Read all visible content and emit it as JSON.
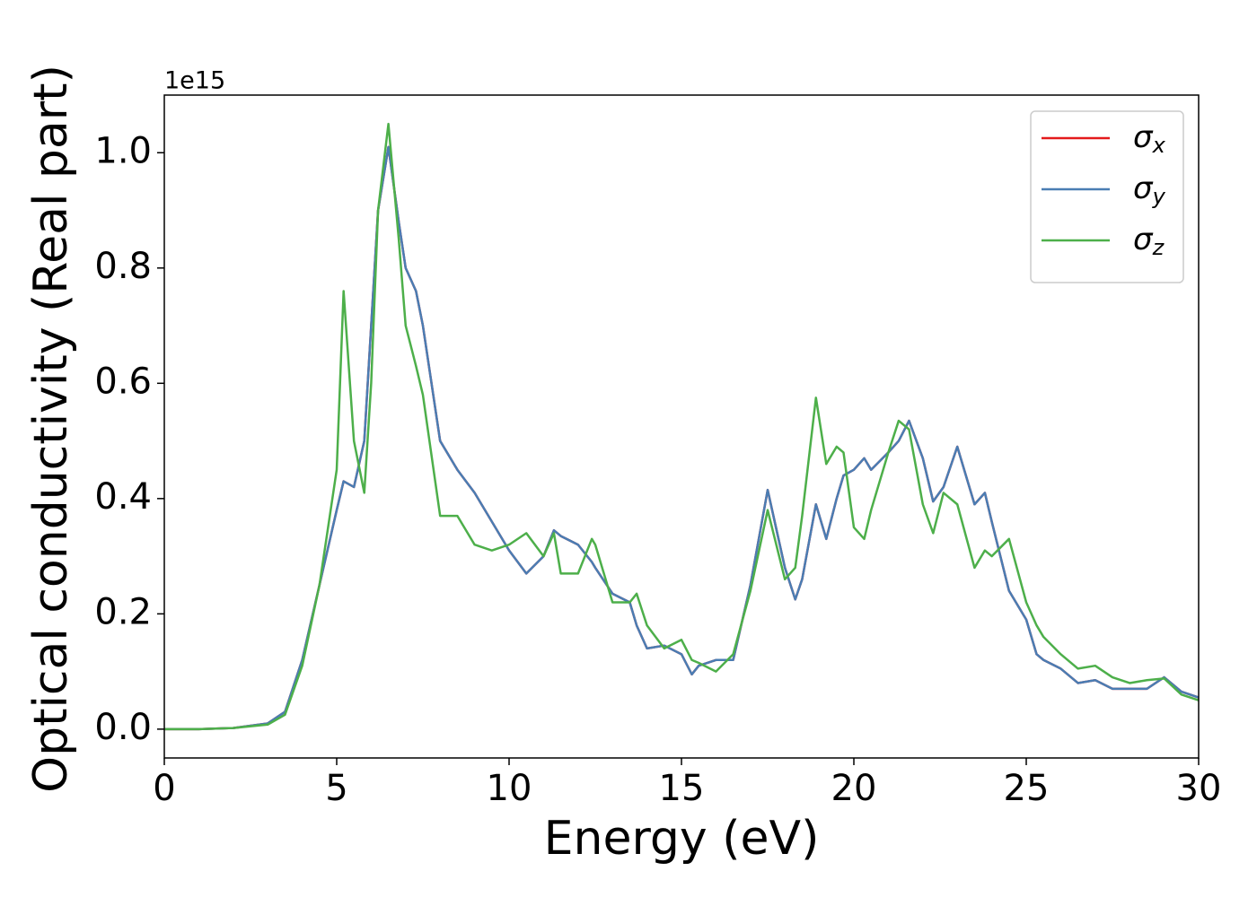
{
  "chart_data": {
    "type": "line",
    "xlabel": "Energy (eV)",
    "ylabel": "Optical conductivity (Real part)",
    "y_offset_label": "1e15",
    "x": [
      0,
      1,
      2,
      3,
      3.5,
      4,
      4.5,
      5,
      5.2,
      5.5,
      5.8,
      6,
      6.2,
      6.5,
      6.8,
      7,
      7.3,
      7.5,
      8,
      8.5,
      9,
      9.5,
      10,
      10.5,
      11,
      11.3,
      11.5,
      12,
      12.4,
      12.5,
      13,
      13.5,
      13.7,
      14,
      14.5,
      15,
      15.3,
      15.5,
      16,
      16.5,
      17,
      17.5,
      18,
      18.3,
      18.5,
      18.9,
      19.2,
      19.5,
      19.7,
      20,
      20.3,
      20.5,
      21,
      21.3,
      21.6,
      22,
      22.3,
      22.6,
      23,
      23.5,
      23.8,
      24,
      24.5,
      25,
      25.3,
      25.5,
      26,
      26.5,
      27,
      27.5,
      28,
      28.5,
      29,
      29.5,
      30
    ],
    "series": [
      {
        "name": "σx",
        "color": "#e41a1c",
        "values": [
          0,
          0,
          0.002,
          0.01,
          0.03,
          0.12,
          0.25,
          0.38,
          0.43,
          0.42,
          0.5,
          0.7,
          0.9,
          1.01,
          0.88,
          0.8,
          0.76,
          0.7,
          0.5,
          0.45,
          0.41,
          0.36,
          0.31,
          0.27,
          0.3,
          0.345,
          0.335,
          0.32,
          0.29,
          0.28,
          0.235,
          0.22,
          0.18,
          0.14,
          0.145,
          0.13,
          0.095,
          0.11,
          0.12,
          0.12,
          0.25,
          0.415,
          0.28,
          0.225,
          0.26,
          0.39,
          0.33,
          0.4,
          0.44,
          0.45,
          0.47,
          0.45,
          0.48,
          0.5,
          0.535,
          0.47,
          0.395,
          0.42,
          0.49,
          0.39,
          0.41,
          0.36,
          0.24,
          0.19,
          0.13,
          0.12,
          0.105,
          0.08,
          0.085,
          0.07,
          0.07,
          0.07,
          0.09,
          0.065,
          0.055
        ]
      },
      {
        "name": "σy",
        "color": "#4a7db3",
        "values": [
          0,
          0,
          0.002,
          0.01,
          0.03,
          0.12,
          0.25,
          0.38,
          0.43,
          0.42,
          0.5,
          0.7,
          0.9,
          1.01,
          0.88,
          0.8,
          0.76,
          0.7,
          0.5,
          0.45,
          0.41,
          0.36,
          0.31,
          0.27,
          0.3,
          0.345,
          0.335,
          0.32,
          0.29,
          0.28,
          0.235,
          0.22,
          0.18,
          0.14,
          0.145,
          0.13,
          0.095,
          0.11,
          0.12,
          0.12,
          0.25,
          0.415,
          0.28,
          0.225,
          0.26,
          0.39,
          0.33,
          0.4,
          0.44,
          0.45,
          0.47,
          0.45,
          0.48,
          0.5,
          0.535,
          0.47,
          0.395,
          0.42,
          0.49,
          0.39,
          0.41,
          0.36,
          0.24,
          0.19,
          0.13,
          0.12,
          0.105,
          0.08,
          0.085,
          0.07,
          0.07,
          0.07,
          0.09,
          0.065,
          0.055
        ]
      },
      {
        "name": "σz",
        "color": "#4daf4a",
        "values": [
          0,
          0,
          0.002,
          0.008,
          0.025,
          0.11,
          0.25,
          0.45,
          0.76,
          0.5,
          0.41,
          0.6,
          0.9,
          1.05,
          0.85,
          0.7,
          0.63,
          0.58,
          0.37,
          0.37,
          0.32,
          0.31,
          0.32,
          0.34,
          0.3,
          0.34,
          0.27,
          0.27,
          0.33,
          0.32,
          0.22,
          0.22,
          0.235,
          0.18,
          0.14,
          0.155,
          0.12,
          0.115,
          0.1,
          0.13,
          0.24,
          0.38,
          0.26,
          0.28,
          0.37,
          0.575,
          0.46,
          0.49,
          0.48,
          0.35,
          0.33,
          0.38,
          0.48,
          0.535,
          0.52,
          0.39,
          0.34,
          0.41,
          0.39,
          0.28,
          0.31,
          0.3,
          0.33,
          0.22,
          0.18,
          0.16,
          0.13,
          0.105,
          0.11,
          0.09,
          0.08,
          0.085,
          0.088,
          0.06,
          0.05
        ]
      }
    ],
    "xlim": [
      0,
      30
    ],
    "xticks": [
      0,
      5,
      10,
      15,
      20,
      25,
      30
    ],
    "ylim": [
      -0.05,
      1.1
    ],
    "yticks": [
      {
        "value": 0,
        "label": "0.0"
      },
      0.2,
      0.4,
      0.6,
      0.8,
      {
        "value": 1,
        "label": "1.0"
      }
    ],
    "grid": false,
    "legend": "upper right"
  }
}
